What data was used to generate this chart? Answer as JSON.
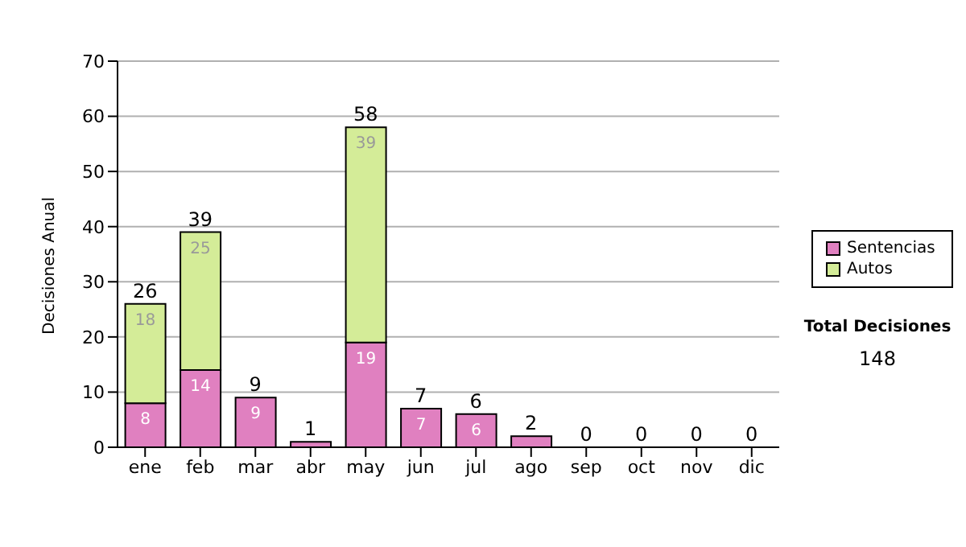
{
  "chart_data": {
    "type": "bar",
    "ylabel": "Decisiones Anual",
    "categories": [
      "ene",
      "feb",
      "mar",
      "abr",
      "may",
      "jun",
      "jul",
      "ago",
      "sep",
      "oct",
      "nov",
      "dic"
    ],
    "stacked": true,
    "series": [
      {
        "name": "Sentencias",
        "color": "#e080c0",
        "values": [
          8,
          14,
          9,
          1,
          19,
          7,
          6,
          2,
          0,
          0,
          0,
          0
        ],
        "value_labels": [
          "8",
          "14",
          "9",
          null,
          "19",
          "7",
          "6",
          null,
          null,
          null,
          null,
          null
        ]
      },
      {
        "name": "Autos",
        "color": "#d4ec98",
        "values": [
          18,
          25,
          0,
          0,
          39,
          0,
          0,
          0,
          0,
          0,
          0,
          0
        ],
        "value_labels": [
          "18",
          "25",
          null,
          null,
          "39",
          null,
          null,
          null,
          null,
          null,
          null,
          null
        ]
      }
    ],
    "totals": [
      "26",
      "39",
      "9",
      "1",
      "58",
      "7",
      "6",
      "2",
      "0",
      "0",
      "0",
      "0"
    ],
    "ylim": [
      0,
      70
    ],
    "yticks": [
      0,
      10,
      20,
      30,
      40,
      50,
      60,
      70
    ],
    "grid": "y",
    "legend": "right",
    "annotations": [
      "Total Decisiones",
      "148"
    ]
  }
}
